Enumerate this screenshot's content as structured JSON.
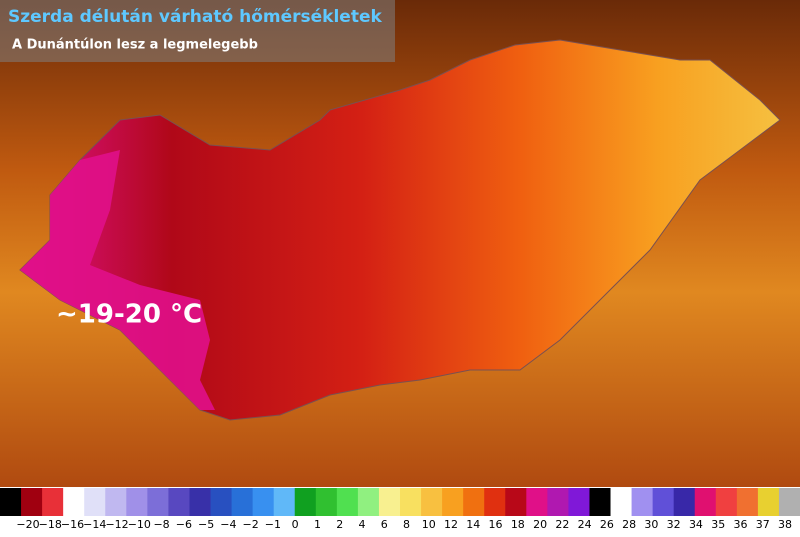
{
  "header": {
    "title": "Szerda délután várható hőmérsékletek",
    "subtitle": "A Dunántúlon lesz a legmelegebb"
  },
  "annotation": "~19-20 °C",
  "legend": {
    "colors": [
      "#000000",
      "#a00010",
      "#e83038",
      "#ffffff",
      "#e0e0f8",
      "#c0b8f0",
      "#a090e8",
      "#7c6ed8",
      "#5848c0",
      "#3830a8",
      "#2850c0",
      "#2870d8",
      "#3890f0",
      "#60b8f8",
      "#10a020",
      "#30c030",
      "#50e050",
      "#90f080",
      "#f8f090",
      "#f8e060",
      "#f8c040",
      "#f8a020",
      "#f07010",
      "#e03010",
      "#b80818",
      "#e01088",
      "#b018b0",
      "#8018d8",
      "#000000",
      "#ffffff",
      "#a090f0",
      "#6050d8",
      "#3828a8",
      "#e01070",
      "#f04040",
      "#f07030",
      "#e8d030",
      "#b0b0b0"
    ],
    "labels": [
      "−20",
      "−18",
      "−16",
      "−14",
      "−12",
      "−10",
      "−8",
      "−6",
      "−5",
      "−4",
      "−2",
      "−1",
      "0",
      "1",
      "2",
      "4",
      "6",
      "8",
      "10",
      "12",
      "14",
      "16",
      "18",
      "20",
      "22",
      "24",
      "26",
      "28",
      "30",
      "32",
      "34",
      "35",
      "36",
      "37",
      "38"
    ]
  }
}
